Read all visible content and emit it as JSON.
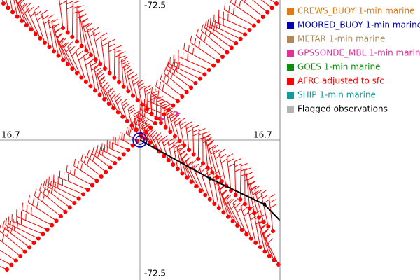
{
  "axes": {
    "top": "-72.5",
    "bottom": "-72.5",
    "left": "16.7",
    "right": "16.7"
  },
  "legend": [
    {
      "label": "CREWS_BUOY 1-min marine",
      "color": "#e07a10"
    },
    {
      "label": "MOORED_BUOY 1-min marine",
      "color": "#0000b4"
    },
    {
      "label": "METAR 1-min marine",
      "color": "#b08858"
    },
    {
      "label": "GPSSONDE_MBL 1-min marine",
      "color": "#e0309c"
    },
    {
      "label": "GOES 1-min marine",
      "color": "#108c10"
    },
    {
      "label": "AFRC adjusted to sfc",
      "color": "#ff0000"
    },
    {
      "label": "SHIP 1-min marine",
      "color": "#109c9c"
    },
    {
      "label": "Flagged observations",
      "color": "#b4b4b4"
    }
  ]
}
